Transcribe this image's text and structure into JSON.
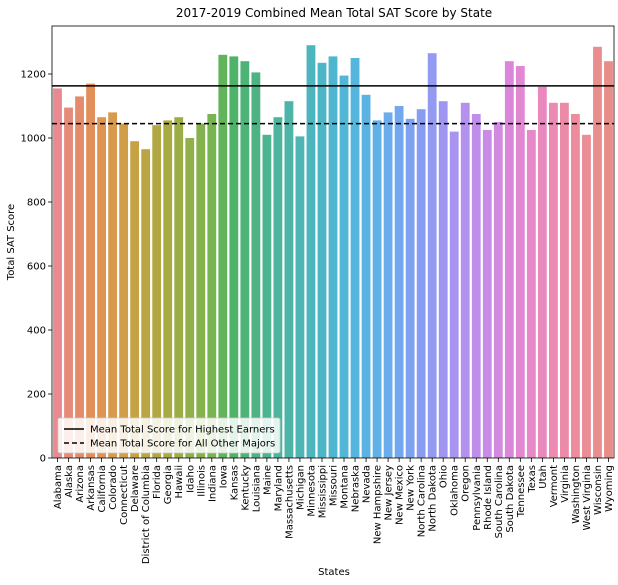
{
  "chart_data": {
    "type": "bar",
    "title": "2017-2019 Combined Mean Total SAT Score by State",
    "xlabel": "States",
    "ylabel": "Total SAT Score",
    "ylim": [
      0,
      1350
    ],
    "yticks": [
      0,
      200,
      400,
      600,
      800,
      1000,
      1200
    ],
    "grid": false,
    "legend_placement": "lower-left",
    "categories": [
      "Alabama",
      "Alaska",
      "Arizona",
      "Arkansas",
      "California",
      "Colorado",
      "Connecticut",
      "Delaware",
      "District of Columbia",
      "Florida",
      "Georgia",
      "Hawaii",
      "Idaho",
      "Illinois",
      "Indiana",
      "Iowa",
      "Kansas",
      "Kentucky",
      "Louisiana",
      "Maine",
      "Maryland",
      "Massachusetts",
      "Michigan",
      "Minnesota",
      "Mississippi",
      "Missouri",
      "Montana",
      "Nebraska",
      "Nevada",
      "New Hampshire",
      "New Jersey",
      "New Mexico",
      "New York",
      "North Carolina",
      "North Dakota",
      "Ohio",
      "Oklahoma",
      "Oregon",
      "Pennsylvania",
      "Rhode Island",
      "South Carolina",
      "South Dakota",
      "Tennessee",
      "Texas",
      "Utah",
      "Vermont",
      "Virginia",
      "Washington",
      "West Virginia",
      "Wisconsin",
      "Wyoming"
    ],
    "values": [
      1155,
      1095,
      1130,
      1170,
      1065,
      1080,
      1045,
      990,
      965,
      1040,
      1055,
      1065,
      1000,
      1045,
      1075,
      1260,
      1255,
      1240,
      1205,
      1010,
      1065,
      1115,
      1005,
      1290,
      1235,
      1255,
      1195,
      1250,
      1135,
      1055,
      1080,
      1100,
      1060,
      1090,
      1265,
      1115,
      1020,
      1110,
      1075,
      1025,
      1050,
      1240,
      1225,
      1025,
      1160,
      1110,
      1110,
      1075,
      1010,
      1285,
      1240
    ],
    "colors": [
      "#e88a8f",
      "#e68a79",
      "#e48c6a",
      "#e28f5a",
      "#df9452",
      "#d89a4c",
      "#cf9e47",
      "#c6a244",
      "#bba543",
      "#b2a843",
      "#a8ab44",
      "#9dad46",
      "#92b049",
      "#86b24d",
      "#78b452",
      "#61b459",
      "#4db368",
      "#4db376",
      "#4db384",
      "#4db491",
      "#4db49d",
      "#4db4a8",
      "#4db5b3",
      "#4db5bd",
      "#4db6c6",
      "#4eb6cf",
      "#52b6d6",
      "#56b5dd",
      "#5bb3e3",
      "#62b0e8",
      "#6aacec",
      "#73a7ef",
      "#7da2f1",
      "#889cf2",
      "#939af2",
      "#9e96f2",
      "#a993f0",
      "#b491ee",
      "#bf8eea",
      "#c98be6",
      "#d289e0",
      "#db87d9",
      "#e287d1",
      "#e788c8",
      "#ea89bd",
      "#ec8ab2",
      "#ec8ba7",
      "#ec8c9d",
      "#eb8d94",
      "#ea8d8e",
      "#e88d8a"
    ],
    "series": [
      {
        "name": "Mean Total Score for Highest Earners",
        "value": 1163,
        "style": "solid",
        "color": "#000000"
      },
      {
        "name": "Mean Total Score for All Other Majors",
        "value": 1045,
        "style": "dashed",
        "color": "#000000"
      }
    ]
  }
}
